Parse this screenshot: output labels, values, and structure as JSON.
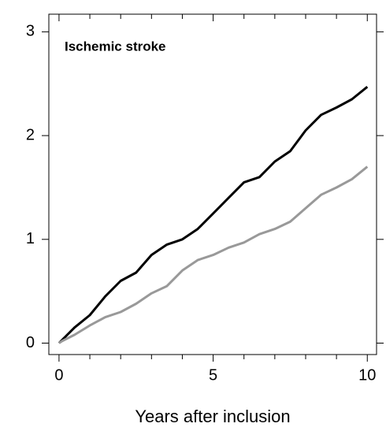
{
  "chart_data": {
    "type": "line",
    "title": "Ischemic stroke",
    "x_label": "Years after inclusion",
    "x": [
      0,
      0.1,
      0.5,
      1,
      1.5,
      2,
      2.5,
      3,
      3.5,
      4,
      4.5,
      5,
      5.5,
      6,
      6.5,
      7,
      7.5,
      8,
      8.5,
      9,
      9.5,
      10
    ],
    "series": [
      {
        "color": "#000000",
        "values": [
          0,
          0.03,
          0.15,
          0.27,
          0.45,
          0.6,
          0.68,
          0.85,
          0.95,
          1.0,
          1.1,
          1.25,
          1.4,
          1.55,
          1.6,
          1.75,
          1.85,
          2.05,
          2.2,
          2.27,
          2.35,
          2.47
        ]
      },
      {
        "color": "#999999",
        "values": [
          0,
          0.02,
          0.08,
          0.17,
          0.25,
          0.3,
          0.38,
          0.48,
          0.55,
          0.7,
          0.8,
          0.85,
          0.92,
          0.97,
          1.05,
          1.1,
          1.17,
          1.3,
          1.43,
          1.5,
          1.58,
          1.7
        ]
      }
    ],
    "xlim": [
      -0.33,
      10.3
    ],
    "ylim": [
      -0.11,
      3.17
    ],
    "xticks": [
      0,
      5,
      10
    ],
    "yticks": [
      0,
      1,
      2,
      3
    ],
    "x_minor_ticks": [
      1,
      2,
      3,
      4,
      6,
      7,
      8,
      9
    ]
  }
}
